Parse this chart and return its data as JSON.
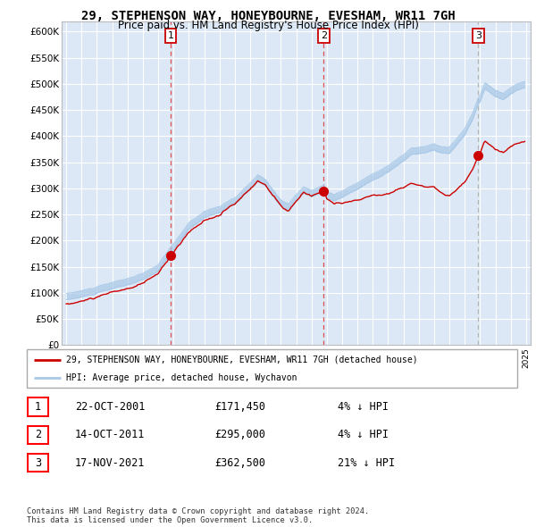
{
  "title": "29, STEPHENSON WAY, HONEYBOURNE, EVESHAM, WR11 7GH",
  "subtitle": "Price paid vs. HM Land Registry's House Price Index (HPI)",
  "legend_property": "29, STEPHENSON WAY, HONEYBOURNE, EVESHAM, WR11 7GH (detached house)",
  "legend_hpi": "HPI: Average price, detached house, Wychavon",
  "sales": [
    {
      "label": "1",
      "date": "22-OCT-2001",
      "price": 171450,
      "pct": "4%",
      "dir": "↓"
    },
    {
      "label": "2",
      "date": "14-OCT-2011",
      "price": 295000,
      "pct": "4%",
      "dir": "↓"
    },
    {
      "label": "3",
      "date": "17-NOV-2021",
      "price": 362500,
      "pct": "21%",
      "dir": "↓"
    }
  ],
  "sale_dates_decimal": [
    2001.81,
    2011.79,
    2021.88
  ],
  "hpi_color": "#a8c8e8",
  "property_color": "#cc0000",
  "background_color": "#dce8f5",
  "ylim": [
    0,
    620000
  ],
  "yticks": [
    0,
    50000,
    100000,
    150000,
    200000,
    250000,
    300000,
    350000,
    400000,
    450000,
    500000,
    550000,
    600000
  ],
  "xlim_start": 1994.7,
  "xlim_end": 2025.3,
  "footer": "Contains HM Land Registry data © Crown copyright and database right 2024.\nThis data is licensed under the Open Government Licence v3.0."
}
